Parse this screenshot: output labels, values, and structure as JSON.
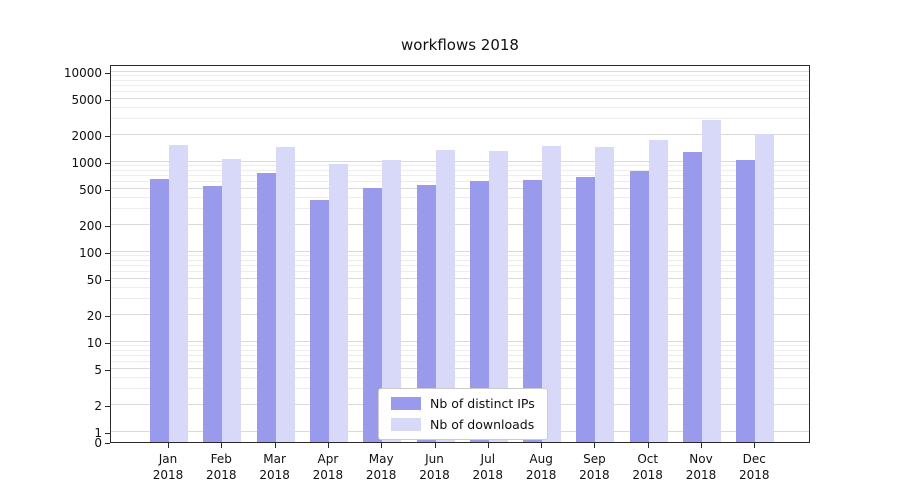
{
  "chart_data": {
    "type": "bar",
    "title": "workflows 2018",
    "categories": [
      "Jan",
      "Feb",
      "Mar",
      "Apr",
      "May",
      "Jun",
      "Jul",
      "Aug",
      "Sep",
      "Oct",
      "Nov",
      "Dec"
    ],
    "year_label": "2018",
    "series": [
      {
        "name": "Nb of distinct IPs",
        "color": "#9a9aec",
        "values": [
          650,
          540,
          760,
          380,
          510,
          560,
          620,
          630,
          690,
          790,
          1290,
          1060
        ]
      },
      {
        "name": "Nb of downloads",
        "color": "#d8d8f8",
        "values": [
          1550,
          1080,
          1470,
          960,
          1050,
          1360,
          1320,
          1500,
          1470,
          1750,
          2950,
          2050
        ]
      }
    ],
    "yscale": "symlog",
    "yticks": [
      10000,
      5000,
      2000,
      1000,
      500,
      200,
      100,
      50,
      20,
      10,
      5,
      2,
      1,
      0
    ],
    "ylim": [
      0,
      12000
    ],
    "grid": true,
    "legend_position": "bottom-center"
  }
}
